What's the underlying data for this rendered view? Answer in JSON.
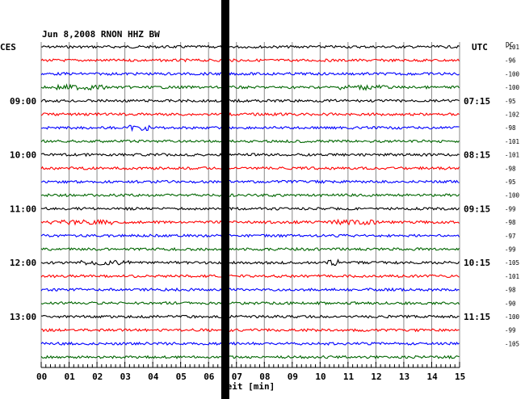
{
  "header": {
    "title": "Jun 8,2008   RNON HHZ BW",
    "left_tz": "CES",
    "right_tz": "UTC",
    "dc_label": "DC"
  },
  "chart_data": {
    "type": "line",
    "title": "Jun 8,2008   RNON HHZ BW",
    "xlabel": "Zeit [min]",
    "xlim": [
      0,
      15
    ],
    "x_ticks": [
      "00",
      "01",
      "02",
      "03",
      "04",
      "05",
      "06",
      "07",
      "08",
      "09",
      "10",
      "11",
      "12",
      "13",
      "14",
      "15"
    ],
    "grid": true,
    "rows": 24,
    "row_colors": [
      "#000000",
      "#ff0000",
      "#0000ff",
      "#006600"
    ],
    "left_time_labels": [
      {
        "row": 4,
        "label": "09:00"
      },
      {
        "row": 8,
        "label": "10:00"
      },
      {
        "row": 12,
        "label": "11:00"
      },
      {
        "row": 16,
        "label": "12:00"
      },
      {
        "row": 20,
        "label": "13:00"
      }
    ],
    "right_time_labels": [
      {
        "row": 4,
        "label": "07:15"
      },
      {
        "row": 8,
        "label": "08:15"
      },
      {
        "row": 12,
        "label": "09:15"
      },
      {
        "row": 16,
        "label": "10:15"
      },
      {
        "row": 20,
        "label": "11:15"
      }
    ],
    "dc_offsets": [
      "-101",
      "-96",
      "-100",
      "-100",
      "-95",
      "-102",
      "-98",
      "-101",
      "-101",
      "-98",
      "-95",
      "-100",
      "-99",
      "-98",
      "-97",
      "-99",
      "-105",
      "-101",
      "-98",
      "-90",
      "-100",
      "-99",
      "-105"
    ],
    "gap_minute": 6.6
  }
}
